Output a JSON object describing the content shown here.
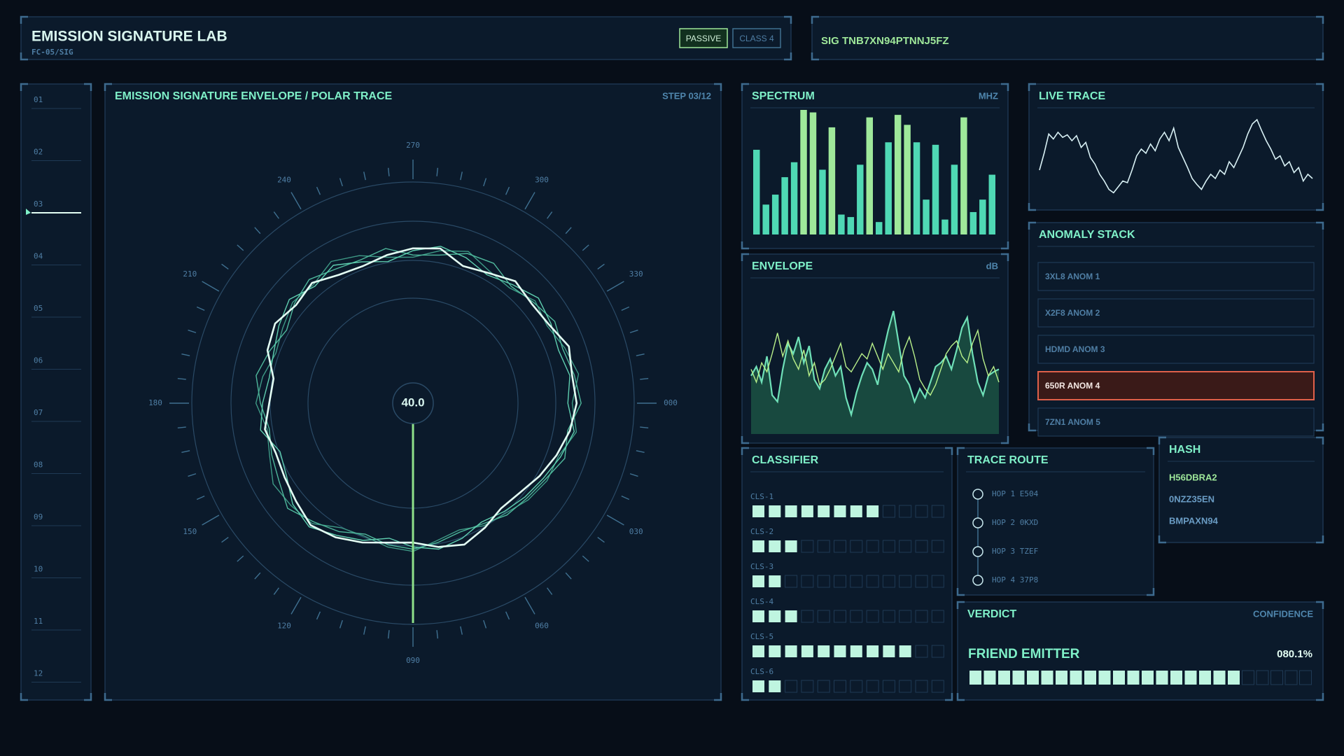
{
  "header": {
    "title": "EMISSION SIGNATURE LAB",
    "subtitle": "FC-05/SIG",
    "buttons": [
      "PASSIVE",
      "CLASS 4"
    ],
    "signature": "SIG TNB7XN94PTNNJ5FZ"
  },
  "steps": {
    "labels": [
      "01",
      "02",
      "03",
      "04",
      "05",
      "06",
      "07",
      "08",
      "09",
      "10",
      "11",
      "12"
    ],
    "active": 2
  },
  "polar": {
    "title": "EMISSION SIGNATURE ENVELOPE / POLAR TRACE",
    "step": "STEP 03/12",
    "center_value": "40.0",
    "angle_labels": [
      "000",
      "030",
      "060",
      "090",
      "120",
      "150",
      "180",
      "210",
      "240",
      "270",
      "300",
      "330"
    ],
    "traces": [
      {
        "color": "#e4fff4",
        "radii": [
          0.74,
          0.72,
          0.69,
          0.66,
          0.63,
          0.62,
          0.65,
          0.68,
          0.66,
          0.63,
          0.64,
          0.67,
          0.7,
          0.72,
          0.69,
          0.67,
          0.66,
          0.68,
          0.65,
          0.64,
          0.7,
          0.72,
          0.69,
          0.71,
          0.67,
          0.66,
          0.68,
          0.7,
          0.71,
          0.66,
          0.68,
          0.72,
          0.7,
          0.71,
          0.75,
          0.73
        ]
      },
      {
        "color": "#5fcfb0",
        "radii": [
          0.7,
          0.74,
          0.71,
          0.68,
          0.66,
          0.64,
          0.62,
          0.65,
          0.67,
          0.65,
          0.62,
          0.66,
          0.69,
          0.73,
          0.71,
          0.66,
          0.64,
          0.7,
          0.68,
          0.66,
          0.67,
          0.7,
          0.73,
          0.69,
          0.72,
          0.68,
          0.65,
          0.69,
          0.72,
          0.7,
          0.67,
          0.7,
          0.74,
          0.72,
          0.7,
          0.72
        ]
      },
      {
        "color": "#4fb89c",
        "radii": [
          0.76,
          0.71,
          0.73,
          0.69,
          0.67,
          0.66,
          0.63,
          0.62,
          0.64,
          0.66,
          0.65,
          0.63,
          0.67,
          0.7,
          0.74,
          0.7,
          0.68,
          0.66,
          0.69,
          0.72,
          0.69,
          0.66,
          0.7,
          0.73,
          0.7,
          0.69,
          0.71,
          0.67,
          0.68,
          0.72,
          0.73,
          0.69,
          0.71,
          0.74,
          0.72,
          0.74
        ]
      },
      {
        "color": "#3e9a86",
        "radii": [
          0.72,
          0.75,
          0.7,
          0.7,
          0.68,
          0.65,
          0.64,
          0.61,
          0.63,
          0.67,
          0.66,
          0.64,
          0.65,
          0.71,
          0.72,
          0.73,
          0.69,
          0.67,
          0.71,
          0.69,
          0.66,
          0.68,
          0.71,
          0.7,
          0.74,
          0.71,
          0.67,
          0.66,
          0.7,
          0.73,
          0.69,
          0.68,
          0.72,
          0.7,
          0.73,
          0.76
        ]
      }
    ]
  },
  "spectrum": {
    "title": "SPECTRUM",
    "unit": "MHZ",
    "max": 100,
    "accent_threshold": 80,
    "color": "#4fd8b4",
    "accent_color": "#9fe89a",
    "values": [
      68,
      24,
      32,
      46,
      58,
      100,
      98,
      52,
      86,
      16,
      14,
      56,
      94,
      10,
      74,
      96,
      88,
      74,
      28,
      72,
      12,
      56,
      94,
      18,
      28,
      48
    ]
  },
  "live_trace": {
    "title": "LIVE TRACE",
    "color": "#d8f0f4",
    "values": [
      0.35,
      0.55,
      0.78,
      0.72,
      0.8,
      0.74,
      0.77,
      0.7,
      0.76,
      0.62,
      0.68,
      0.5,
      0.42,
      0.3,
      0.22,
      0.12,
      0.08,
      0.15,
      0.22,
      0.2,
      0.35,
      0.52,
      0.6,
      0.55,
      0.66,
      0.58,
      0.72,
      0.8,
      0.7,
      0.85,
      0.62,
      0.5,
      0.38,
      0.25,
      0.18,
      0.12,
      0.22,
      0.3,
      0.25,
      0.35,
      0.3,
      0.45,
      0.38,
      0.5,
      0.62,
      0.78,
      0.9,
      0.95,
      0.82,
      0.7,
      0.6,
      0.48,
      0.52,
      0.4,
      0.45,
      0.32,
      0.38,
      0.22,
      0.3,
      0.25
    ]
  },
  "envelope": {
    "title": "ENVELOPE",
    "unit": "dB",
    "series": [
      {
        "color": "#6fe0b8",
        "values": [
          0.45,
          0.52,
          0.4,
          0.6,
          0.3,
          0.25,
          0.5,
          0.7,
          0.62,
          0.75,
          0.55,
          0.68,
          0.42,
          0.35,
          0.5,
          0.58,
          0.45,
          0.52,
          0.28,
          0.15,
          0.32,
          0.45,
          0.55,
          0.5,
          0.38,
          0.62,
          0.8,
          0.95,
          0.7,
          0.45,
          0.38,
          0.25,
          0.35,
          0.28,
          0.4,
          0.52,
          0.55,
          0.6,
          0.5,
          0.65,
          0.82,
          0.9,
          0.62,
          0.4,
          0.3,
          0.45,
          0.48,
          0.5
        ]
      },
      {
        "color": "#b8f08a",
        "values": [
          0.5,
          0.4,
          0.55,
          0.48,
          0.62,
          0.78,
          0.6,
          0.72,
          0.58,
          0.5,
          0.65,
          0.45,
          0.55,
          0.38,
          0.42,
          0.5,
          0.6,
          0.7,
          0.52,
          0.48,
          0.55,
          0.62,
          0.58,
          0.7,
          0.6,
          0.5,
          0.62,
          0.55,
          0.48,
          0.65,
          0.75,
          0.6,
          0.42,
          0.35,
          0.3,
          0.38,
          0.5,
          0.62,
          0.68,
          0.72,
          0.6,
          0.55,
          0.7,
          0.8,
          0.58,
          0.45,
          0.52,
          0.4
        ]
      }
    ]
  },
  "anomaly_stack": {
    "title": "ANOMALY STACK",
    "items": [
      "3XL8  ANOM 1",
      "X2F8  ANOM 2",
      "HDMD  ANOM 3",
      "650R  ANOM 4",
      "7ZN1  ANOM 5"
    ],
    "alert_index": 3
  },
  "hash": {
    "title": "HASH",
    "items": [
      "H56DBRA2",
      "0NZZ35EN",
      "BMPAXN94"
    ]
  },
  "classifier": {
    "title": "CLASSIFIER",
    "blocks": 12,
    "rows": [
      {
        "label": "CLS-1",
        "filled": 8
      },
      {
        "label": "CLS-2",
        "filled": 3
      },
      {
        "label": "CLS-3",
        "filled": 2
      },
      {
        "label": "CLS-4",
        "filled": 3
      },
      {
        "label": "CLS-5",
        "filled": 10
      },
      {
        "label": "CLS-6",
        "filled": 2
      }
    ]
  },
  "trace_route": {
    "title": "TRACE ROUTE",
    "hops": [
      "HOP 1 E504",
      "HOP 2 0KXD",
      "HOP 3 TZEF",
      "HOP 4 37P8"
    ]
  },
  "verdict": {
    "title": "VERDICT",
    "confidence_caption": "CONFIDENCE",
    "label": "FRIEND EMITTER",
    "confidence": 80.1,
    "confidence_label": "080.1%",
    "blocks": 24
  }
}
